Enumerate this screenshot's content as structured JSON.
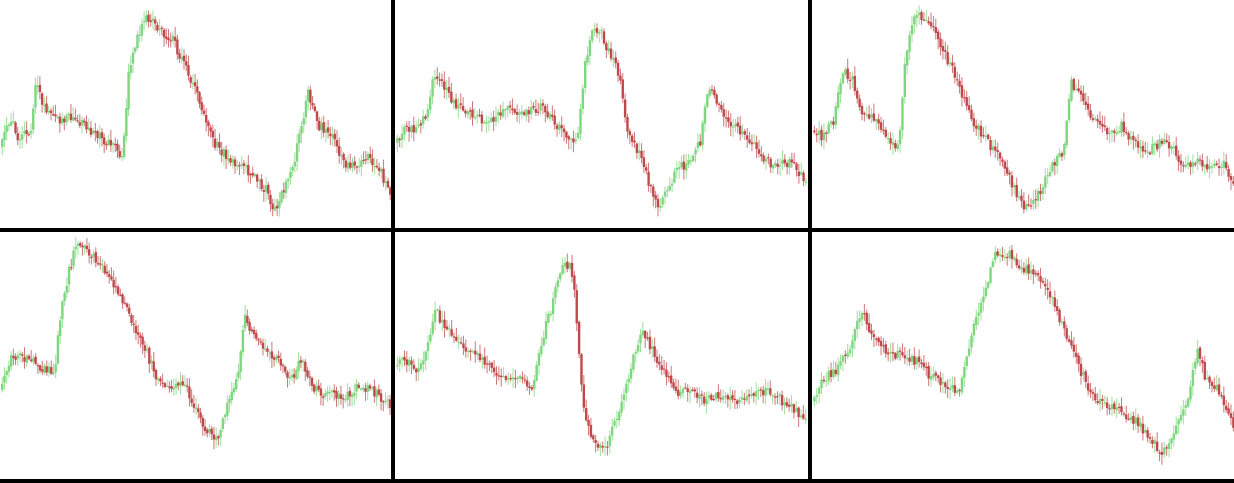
{
  "colors": {
    "up": "#7ed67e",
    "down": "#c0484a",
    "wick": "#c9a9a9",
    "divider": "#000000",
    "background": "#ffffff"
  },
  "chart_data": [
    {
      "type": "candlestick",
      "title": "",
      "grid": false,
      "axes_visible": false,
      "keypoints": [
        [
          0,
          145
        ],
        [
          6,
          130
        ],
        [
          12,
          118
        ],
        [
          18,
          138
        ],
        [
          24,
          125
        ],
        [
          30,
          140
        ],
        [
          36,
          72
        ],
        [
          42,
          105
        ],
        [
          50,
          110
        ],
        [
          60,
          122
        ],
        [
          72,
          115
        ],
        [
          85,
          125
        ],
        [
          100,
          135
        ],
        [
          112,
          145
        ],
        [
          122,
          155
        ],
        [
          128,
          70
        ],
        [
          136,
          40
        ],
        [
          146,
          15
        ],
        [
          158,
          30
        ],
        [
          172,
          40
        ],
        [
          186,
          70
        ],
        [
          200,
          105
        ],
        [
          212,
          140
        ],
        [
          226,
          155
        ],
        [
          240,
          165
        ],
        [
          254,
          175
        ],
        [
          266,
          190
        ],
        [
          272,
          210
        ],
        [
          282,
          185
        ],
        [
          292,
          160
        ],
        [
          300,
          120
        ],
        [
          306,
          90
        ],
        [
          316,
          125
        ],
        [
          328,
          130
        ],
        [
          340,
          160
        ],
        [
          352,
          165
        ],
        [
          364,
          155
        ],
        [
          376,
          165
        ],
        [
          388,
          195
        ]
      ],
      "ylim": [
        0,
        225
      ]
    },
    {
      "type": "candlestick",
      "title": "",
      "grid": false,
      "axes_visible": false,
      "keypoints": [
        [
          0,
          140
        ],
        [
          12,
          125
        ],
        [
          22,
          128
        ],
        [
          30,
          110
        ],
        [
          36,
          75
        ],
        [
          44,
          80
        ],
        [
          52,
          100
        ],
        [
          66,
          110
        ],
        [
          80,
          118
        ],
        [
          96,
          115
        ],
        [
          108,
          108
        ],
        [
          122,
          112
        ],
        [
          136,
          105
        ],
        [
          150,
          120
        ],
        [
          164,
          140
        ],
        [
          172,
          130
        ],
        [
          178,
          65
        ],
        [
          184,
          30
        ],
        [
          192,
          28
        ],
        [
          200,
          50
        ],
        [
          210,
          75
        ],
        [
          218,
          130
        ],
        [
          226,
          145
        ],
        [
          236,
          175
        ],
        [
          246,
          205
        ],
        [
          256,
          185
        ],
        [
          266,
          165
        ],
        [
          276,
          160
        ],
        [
          286,
          140
        ],
        [
          294,
          85
        ],
        [
          302,
          100
        ],
        [
          312,
          120
        ],
        [
          322,
          130
        ],
        [
          334,
          140
        ],
        [
          346,
          160
        ],
        [
          360,
          162
        ],
        [
          374,
          160
        ],
        [
          386,
          185
        ]
      ],
      "ylim": [
        0,
        225
      ]
    },
    {
      "type": "candlestick",
      "title": "",
      "grid": false,
      "axes_visible": false,
      "keypoints": [
        [
          0,
          130
        ],
        [
          10,
          135
        ],
        [
          20,
          120
        ],
        [
          28,
          70
        ],
        [
          36,
          75
        ],
        [
          46,
          110
        ],
        [
          58,
          120
        ],
        [
          70,
          135
        ],
        [
          80,
          145
        ],
        [
          86,
          65
        ],
        [
          94,
          15
        ],
        [
          104,
          20
        ],
        [
          114,
          30
        ],
        [
          124,
          55
        ],
        [
          134,
          80
        ],
        [
          144,
          110
        ],
        [
          158,
          135
        ],
        [
          172,
          155
        ],
        [
          184,
          180
        ],
        [
          196,
          205
        ],
        [
          208,
          195
        ],
        [
          220,
          165
        ],
        [
          232,
          150
        ],
        [
          240,
          80
        ],
        [
          250,
          100
        ],
        [
          262,
          120
        ],
        [
          274,
          130
        ],
        [
          286,
          125
        ],
        [
          298,
          140
        ],
        [
          312,
          150
        ],
        [
          326,
          135
        ],
        [
          340,
          160
        ],
        [
          356,
          160
        ],
        [
          370,
          165
        ],
        [
          382,
          160
        ],
        [
          390,
          185
        ]
      ],
      "ylim": [
        0,
        225
      ]
    },
    {
      "type": "candlestick",
      "title": "",
      "grid": false,
      "axes_visible": false,
      "keypoints": [
        [
          0,
          160
        ],
        [
          10,
          130
        ],
        [
          20,
          125
        ],
        [
          32,
          130
        ],
        [
          44,
          140
        ],
        [
          54,
          140
        ],
        [
          60,
          80
        ],
        [
          68,
          40
        ],
        [
          76,
          10
        ],
        [
          86,
          20
        ],
        [
          96,
          30
        ],
        [
          108,
          45
        ],
        [
          120,
          65
        ],
        [
          132,
          95
        ],
        [
          144,
          120
        ],
        [
          156,
          150
        ],
        [
          168,
          160
        ],
        [
          180,
          150
        ],
        [
          192,
          175
        ],
        [
          204,
          200
        ],
        [
          214,
          210
        ],
        [
          224,
          175
        ],
        [
          234,
          150
        ],
        [
          242,
          85
        ],
        [
          250,
          105
        ],
        [
          262,
          120
        ],
        [
          274,
          130
        ],
        [
          286,
          150
        ],
        [
          298,
          130
        ],
        [
          310,
          160
        ],
        [
          324,
          165
        ],
        [
          340,
          165
        ],
        [
          356,
          155
        ],
        [
          372,
          165
        ],
        [
          386,
          175
        ]
      ],
      "ylim": [
        0,
        250
      ]
    },
    {
      "type": "candlestick",
      "title": "",
      "grid": false,
      "axes_visible": false,
      "keypoints": [
        [
          0,
          135
        ],
        [
          10,
          130
        ],
        [
          20,
          140
        ],
        [
          30,
          120
        ],
        [
          38,
          80
        ],
        [
          46,
          95
        ],
        [
          56,
          105
        ],
        [
          66,
          120
        ],
        [
          78,
          125
        ],
        [
          90,
          140
        ],
        [
          104,
          145
        ],
        [
          116,
          150
        ],
        [
          128,
          160
        ],
        [
          138,
          105
        ],
        [
          146,
          75
        ],
        [
          156,
          30
        ],
        [
          164,
          35
        ],
        [
          168,
          65
        ],
        [
          172,
          135
        ],
        [
          176,
          180
        ],
        [
          184,
          210
        ],
        [
          196,
          220
        ],
        [
          206,
          190
        ],
        [
          214,
          160
        ],
        [
          222,
          125
        ],
        [
          230,
          100
        ],
        [
          240,
          120
        ],
        [
          252,
          145
        ],
        [
          264,
          165
        ],
        [
          276,
          160
        ],
        [
          290,
          170
        ],
        [
          304,
          165
        ],
        [
          318,
          170
        ],
        [
          332,
          165
        ],
        [
          348,
          160
        ],
        [
          360,
          170
        ],
        [
          372,
          180
        ],
        [
          384,
          190
        ]
      ],
      "ylim": [
        0,
        250
      ]
    },
    {
      "type": "candlestick",
      "title": "",
      "grid": false,
      "axes_visible": false,
      "keypoints": [
        [
          0,
          170
        ],
        [
          10,
          150
        ],
        [
          22,
          140
        ],
        [
          34,
          120
        ],
        [
          46,
          80
        ],
        [
          56,
          105
        ],
        [
          68,
          120
        ],
        [
          80,
          125
        ],
        [
          96,
          130
        ],
        [
          108,
          145
        ],
        [
          122,
          155
        ],
        [
          136,
          160
        ],
        [
          148,
          100
        ],
        [
          160,
          60
        ],
        [
          168,
          25
        ],
        [
          180,
          20
        ],
        [
          194,
          35
        ],
        [
          208,
          45
        ],
        [
          222,
          70
        ],
        [
          236,
          110
        ],
        [
          250,
          145
        ],
        [
          262,
          170
        ],
        [
          276,
          175
        ],
        [
          290,
          185
        ],
        [
          302,
          195
        ],
        [
          314,
          210
        ],
        [
          324,
          225
        ],
        [
          334,
          200
        ],
        [
          346,
          175
        ],
        [
          356,
          120
        ],
        [
          366,
          155
        ],
        [
          376,
          160
        ],
        [
          390,
          195
        ]
      ],
      "ylim": [
        0,
        250
      ]
    }
  ]
}
